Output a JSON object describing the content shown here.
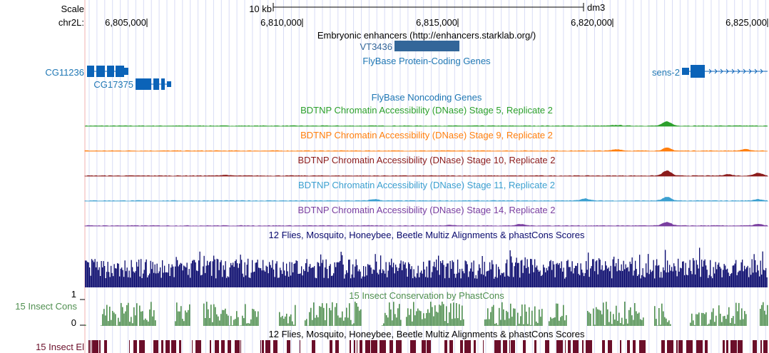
{
  "ruler": {
    "scale_label": "Scale",
    "chrom_label": "chr2L:",
    "scale_value": "10 kb",
    "assembly": "dm3",
    "ticks": [
      "6,805,000",
      "6,810,000",
      "6,815,000",
      "6,820,000",
      "6,825,000"
    ]
  },
  "tracks": {
    "enhancers": {
      "title": "Embryonic enhancers (http://enhancers.starklab.org/)",
      "feature": "VT3436",
      "color": "#336699"
    },
    "flybase_coding": {
      "title": "FlyBase Protein-Coding Genes",
      "color": "#1f77b4",
      "genes": [
        "CG11236",
        "CG17375",
        "sens-2"
      ]
    },
    "flybase_noncoding": {
      "title": "FlyBase Noncoding Genes",
      "color": "#1f77b4"
    },
    "dnase": [
      {
        "title": "BDTNP Chromatin Accessibility (DNase) Stage 5, Replicate 2",
        "color": "#2ca02c"
      },
      {
        "title": "BDTNP Chromatin Accessibility (DNase) Stage 9, Replicate 2",
        "color": "#ff7f0e"
      },
      {
        "title": "BDTNP Chromatin Accessibility (DNase) Stage 10, Replicate 2",
        "color": "#8c1c1c"
      },
      {
        "title": "BDTNP Chromatin Accessibility (DNase) Stage 11, Replicate 2",
        "color": "#3ca0d0"
      },
      {
        "title": "BDTNP Chromatin Accessibility (DNase) Stage 14, Replicate 2",
        "color": "#7a3fa0"
      }
    ],
    "multiz_1": {
      "title": "12 Flies, Mosquito, Honeybee, Beetle Multiz Alignments & phastCons Scores",
      "color": "#0b0b6e"
    },
    "phastcons": {
      "title": "15 Insect Conservation by PhastCons",
      "side_label": "15 Insect Cons",
      "y_max": "1",
      "y_min": "0",
      "color": "#4f8f4f"
    },
    "multiz_2": {
      "title": "12 Flies, Mosquito, Honeybee, Beetle Multiz Alignments & phastCons Scores",
      "side_label": "15 Insect El",
      "color": "#6b0f2a"
    }
  }
}
